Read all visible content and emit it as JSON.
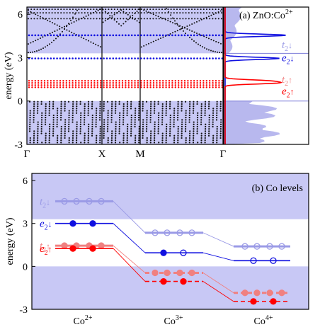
{
  "colors": {
    "band_region": "#c8c8f5",
    "majority_dark": "#1010e0",
    "majority_light": "#9a9ae6",
    "minority_dark": "#ff0000",
    "minority_light": "#f08080",
    "dos_fill": "#b8b8ee"
  },
  "chart_data": [
    {
      "type": "band structure",
      "panel": "a",
      "title_text": "(a) ZnO:Co",
      "title_sup": "2+",
      "ylabel": "energy (eV)",
      "ylim": [
        -3,
        6.5
      ],
      "yticks": [
        "-3",
        "0",
        "3",
        "6"
      ],
      "xticks": [
        "Γ",
        "X",
        "M",
        "Γ"
      ],
      "gap_range": [
        0,
        3.3
      ],
      "red_levels": [
        0.95,
        1.1,
        1.25,
        1.4
      ],
      "blue_levels": [
        2.95,
        4.55
      ],
      "annotations": [
        {
          "base": "t",
          "sub": "2",
          "spin": "↓",
          "value": 3.9,
          "color": "light_majority"
        },
        {
          "base": "e",
          "sub": "2",
          "spin": "↓",
          "value": 3.0,
          "color": "dark_majority"
        },
        {
          "base": "t",
          "sub": "2",
          "spin": "↑",
          "value": 1.5,
          "color": "light_minority"
        },
        {
          "base": "e",
          "sub": "2",
          "spin": "↑",
          "value": 0.7,
          "color": "dark_minority"
        }
      ],
      "dos_peaks": {
        "blue": [
          {
            "energy": 4.55,
            "height": 0.95
          },
          {
            "energy": 2.95,
            "height": 0.85
          }
        ],
        "red": [
          {
            "energy": 1.25,
            "height": 0.75
          },
          {
            "energy": 1.4,
            "height": 0.6
          }
        ]
      }
    },
    {
      "type": "level diagram",
      "panel": "b",
      "title": "(b) Co levels",
      "ylabel": "energy (eV)",
      "ylim": [
        -3,
        6.5
      ],
      "yticks": [
        "-3",
        "0",
        "3",
        "6"
      ],
      "categories": [
        {
          "base": "Co",
          "sup": "2+"
        },
        {
          "base": "Co",
          "sup": "3+"
        },
        {
          "base": "Co",
          "sup": "4+"
        }
      ],
      "gap_range": [
        0,
        3.3
      ],
      "series": [
        {
          "name_base": "t",
          "name_sub": "2",
          "name_spin": "↓",
          "color": "majority_light",
          "values": [
            4.55,
            2.35,
            1.4
          ],
          "occupation": [
            "empty",
            "empty",
            "empty"
          ]
        },
        {
          "name_base": "e",
          "name_sub": "2",
          "name_spin": "↓",
          "color": "majority_dark",
          "values": [
            3.0,
            0.95,
            0.4
          ],
          "occupation": [
            "filled",
            "half",
            "empty"
          ]
        },
        {
          "name_base": "t",
          "name_sub": "2",
          "name_spin": "↑",
          "color": "minority_light",
          "values": [
            1.45,
            -0.45,
            -1.85
          ],
          "occupation": [
            "filled",
            "filled",
            "filled"
          ]
        },
        {
          "name_base": "e",
          "name_sub": "2",
          "name_spin": "↑",
          "color": "minority_dark",
          "values": [
            1.25,
            -1.05,
            -2.45
          ],
          "occupation": [
            "filled",
            "filled",
            "filled"
          ]
        }
      ]
    }
  ]
}
